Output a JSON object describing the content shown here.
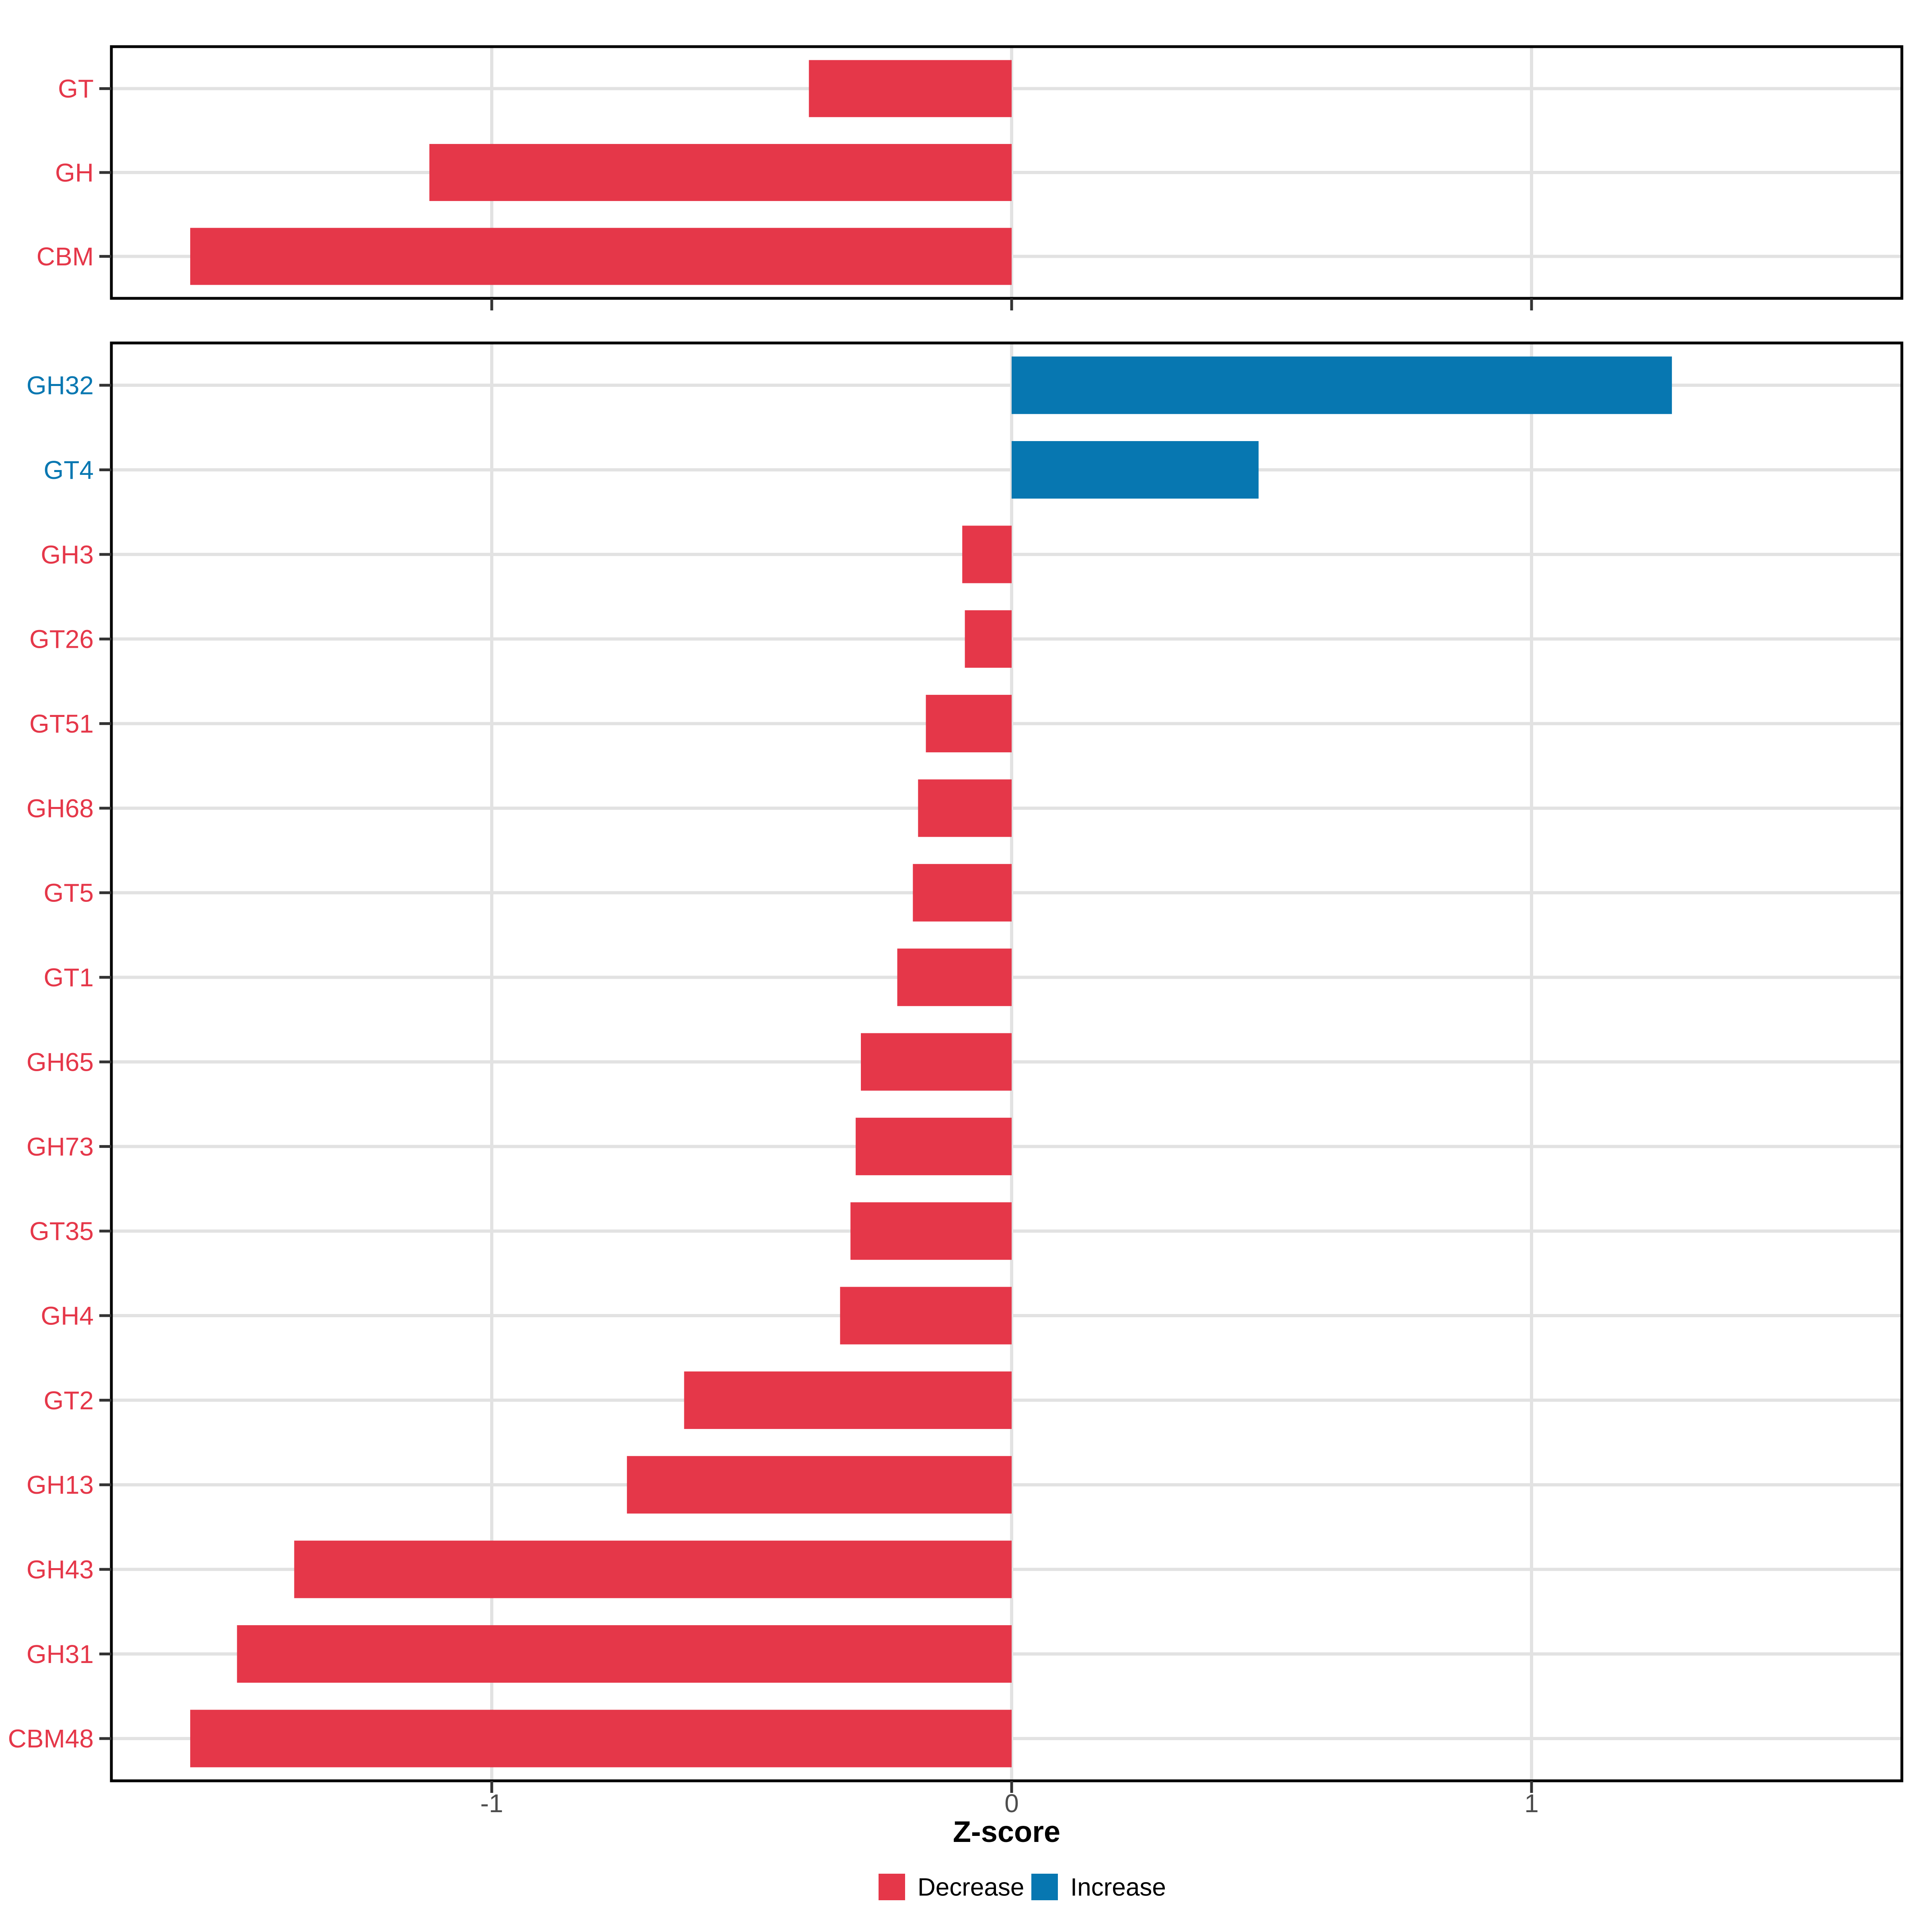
{
  "chart_data": {
    "type": "bar",
    "orientation": "horizontal",
    "title": "",
    "xlabel": "Z-score",
    "ylabel": "",
    "xlim": [
      -1.73,
      1.71
    ],
    "x_ticks": [
      -1,
      0,
      1
    ],
    "x_tick_labels": [
      "-1",
      "0",
      "1"
    ],
    "grid": "major",
    "legend_position": "bottom",
    "colors": {
      "decrease": "#E53749",
      "increase": "#0777B1"
    },
    "legend": {
      "entries": [
        {
          "label": "Decrease",
          "color": "#E53749"
        },
        {
          "label": "Increase",
          "color": "#0777B1"
        }
      ]
    },
    "panels": [
      {
        "id": "cazy-classes",
        "categories": [
          "GT",
          "GH",
          "CBM"
        ],
        "values": [
          -0.39,
          -1.12,
          -1.58
        ],
        "directions": [
          "Decrease",
          "Decrease",
          "Decrease"
        ]
      },
      {
        "id": "cazy-families",
        "categories": [
          "GH32",
          "GT4",
          "GH3",
          "GT26",
          "GT51",
          "GH68",
          "GT5",
          "GT1",
          "GH65",
          "GH73",
          "GT35",
          "GH4",
          "GT2",
          "GH13",
          "GH43",
          "GH31",
          "CBM48"
        ],
        "values": [
          1.27,
          0.475,
          -0.095,
          -0.09,
          -0.165,
          -0.18,
          -0.19,
          -0.22,
          -0.29,
          -0.3,
          -0.31,
          -0.33,
          -0.63,
          -0.74,
          -1.38,
          -1.49,
          -1.58
        ],
        "directions": [
          "Increase",
          "Increase",
          "Decrease",
          "Decrease",
          "Decrease",
          "Decrease",
          "Decrease",
          "Decrease",
          "Decrease",
          "Decrease",
          "Decrease",
          "Decrease",
          "Decrease",
          "Decrease",
          "Decrease",
          "Decrease",
          "Decrease"
        ]
      }
    ]
  }
}
